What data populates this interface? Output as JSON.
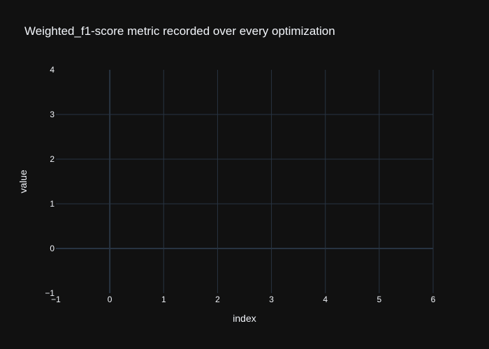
{
  "chart_data": {
    "type": "line",
    "title": "Weighted_f1-score metric recorded over every optimization",
    "xlabel": "index",
    "ylabel": "value",
    "xlim": [
      -1,
      6
    ],
    "ylim": [
      -1,
      4
    ],
    "x_ticks": [
      "−1",
      "0",
      "1",
      "2",
      "3",
      "4",
      "5",
      "6"
    ],
    "y_ticks": [
      "−1",
      "0",
      "1",
      "2",
      "3",
      "4"
    ],
    "grid": true,
    "series": []
  },
  "colors": {
    "background": "#111111",
    "grid": "#283442",
    "text": "#f2f5fa"
  }
}
